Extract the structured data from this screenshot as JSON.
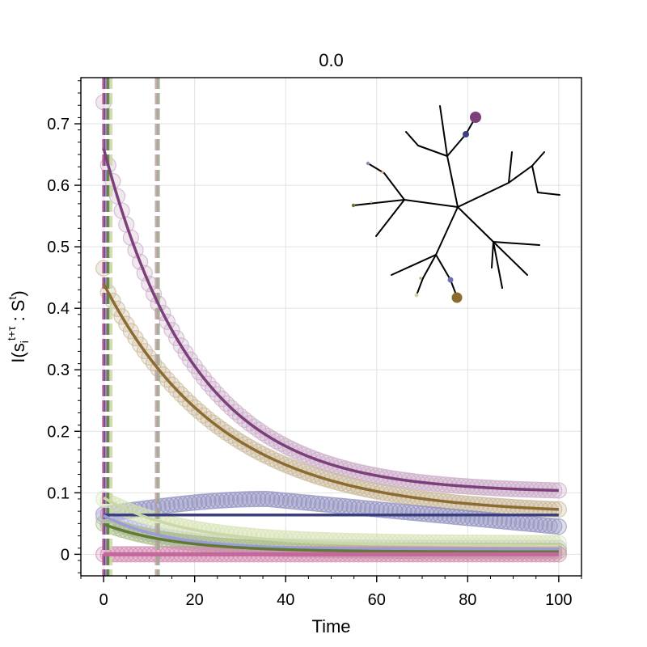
{
  "chart_data": {
    "type": "scatter",
    "title": "0.0",
    "xlabel": "Time",
    "ylabel": "I(s",
    "ylabel_sub": "i",
    "ylabel_sup": "t+τ",
    "ylabel_tail": " : S",
    "ylabel_tail_sup": "t",
    "ylabel_close": ")",
    "xlim": [
      -5,
      105
    ],
    "ylim": [
      -0.035,
      0.775
    ],
    "xticks": [
      0,
      20,
      40,
      60,
      80,
      100
    ],
    "xtick_labels": [
      "0",
      "20",
      "40",
      "60",
      "80",
      "100"
    ],
    "yticks": [
      0,
      0.1,
      0.2,
      0.3,
      0.4,
      0.5,
      0.6,
      0.7
    ],
    "ytick_labels": [
      "0",
      "0.1",
      "0.2",
      "0.3",
      "0.4",
      "0.5",
      "0.6",
      "0.7"
    ],
    "grid": true,
    "series": [
      {
        "color": "#7b3f7a",
        "dot_color": "#c9a9c6",
        "points": {
          "x0": 0.735,
          "y_fit_start": 0.66,
          "y_end": 0.1,
          "tau": 20
        },
        "fit": {
          "a": 0.56,
          "tau": 20,
          "c": 0.1
        }
      },
      {
        "color": "#8c6b30",
        "dot_color": "#c8b796",
        "points": {
          "x0": 0.465,
          "y_fit_start": 0.44,
          "y_end": 0.065,
          "tau": 26
        },
        "fit": {
          "a": 0.375,
          "tau": 26,
          "c": 0.065
        }
      },
      {
        "color": "#3b3f7f",
        "dot_color": "#8f8fc0",
        "points": {
          "hump": true,
          "x0": 0.065,
          "peak": 0.09,
          "peak_x": 36,
          "y_end": 0.045
        },
        "fit": {
          "constant": 0.064
        }
      },
      {
        "color": "#9b9bd8",
        "dot_color": "#b9b9e3",
        "points": {
          "x0": 0.06,
          "y_end": 0.01,
          "tau": 14
        },
        "fit": {
          "a": 0.055,
          "tau": 14,
          "c": 0.008
        }
      },
      {
        "color": "#c9d8a6",
        "dot_color": "#d7e4b6",
        "points": {
          "x0": 0.09,
          "y_end": 0.018,
          "tau": 18
        },
        "fit": {
          "a": 0.078,
          "tau": 18,
          "c": 0.014
        }
      },
      {
        "color": "#5f7a35",
        "dot_color": "#a9bc84",
        "points": {
          "x0": 0.05,
          "y_end": 0.005,
          "tau": 16
        },
        "fit": {
          "a": 0.045,
          "tau": 16,
          "c": 0.004
        }
      },
      {
        "color": "#c4679b",
        "dot_color": "#d48ab2",
        "points": {
          "x0": 0.0,
          "y_end": 0.0,
          "tau": 10
        },
        "fit": {
          "constant": 0.0
        }
      }
    ],
    "vlines": [
      {
        "x": 0,
        "color": "#c4679b"
      },
      {
        "x": 0.3,
        "color": "#7b3f7a"
      },
      {
        "x": 0.7,
        "color": "#9b9bd8"
      },
      {
        "x": 1.0,
        "color": "#5f7a35"
      },
      {
        "x": 1.6,
        "color": "#c9d8a6"
      },
      {
        "x": 11.6,
        "color": "#c4a0a8"
      },
      {
        "x": 12.0,
        "color": "#9ea78e"
      }
    ]
  },
  "inset_tree": {
    "description_colors": {
      "edge": "#000000",
      "node_big_top": "#7b3f7a",
      "node_big_bottom": "#8c6b30",
      "node_small_1": "#3b3f7f",
      "node_small_2": "#6f6fb0",
      "node_small_3": "#5f7a35",
      "node_small_4": "#c9d8a6",
      "node_small_5": "#8f8fc0",
      "node_tick_1": "#e0a080",
      "node_tick_2": "#c9d8a6"
    }
  }
}
